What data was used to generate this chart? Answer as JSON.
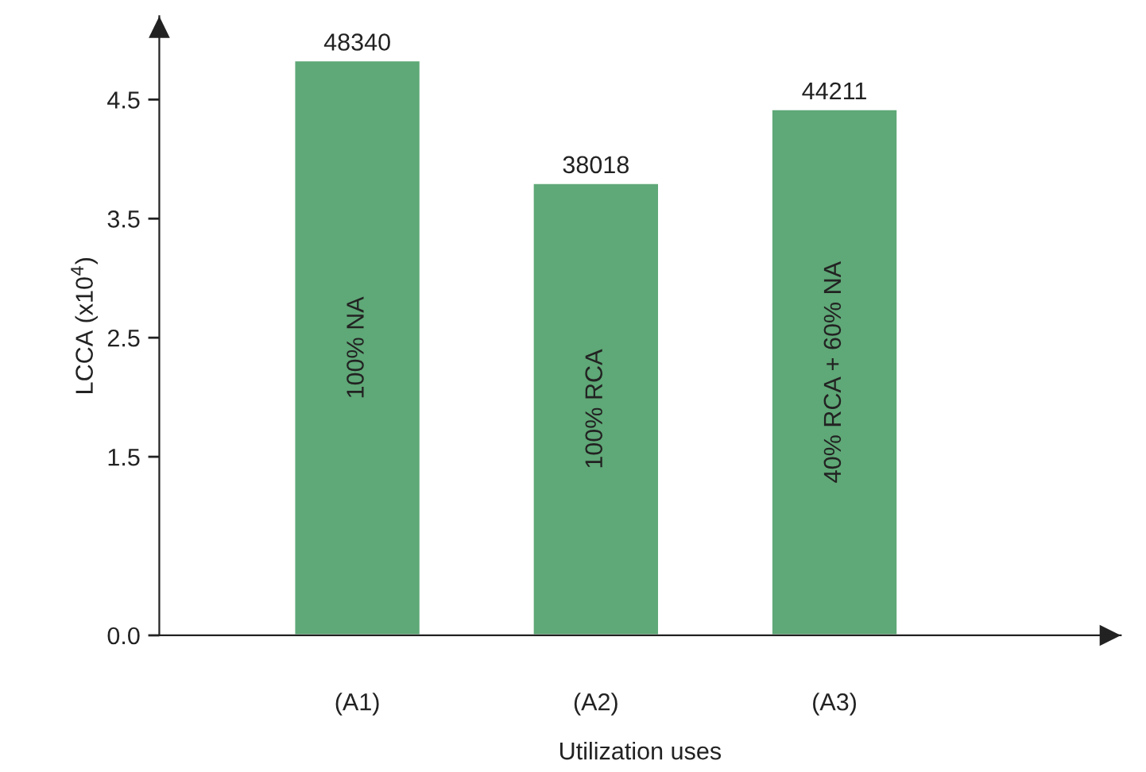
{
  "chart_data": {
    "type": "bar",
    "xlabel": "Utilization uses",
    "ylabel": "LCCA (x10$^{4}$)",
    "categories": [
      "(A1)",
      "(A2)",
      "(A3)"
    ],
    "values": [
      4.83,
      3.8,
      4.42
    ],
    "color": "#5fa877",
    "ylim": [
      0,
      5.2
    ],
    "yticks": [
      {
        "value": 0,
        "label": "0.0"
      },
      1.5,
      2.5,
      3.5,
      4.5
    ],
    "grid": false,
    "annotations": [
      {
        "text": "48340",
        "x": "(A1)",
        "y": 4.83
      },
      {
        "text": "38018",
        "x": "(A2)",
        "y": 3.8
      },
      {
        "text": "44211",
        "x": "(A3)",
        "y": 4.42
      },
      "100% NA",
      "100% RCA",
      "40% RCA + 60% NA"
    ]
  }
}
